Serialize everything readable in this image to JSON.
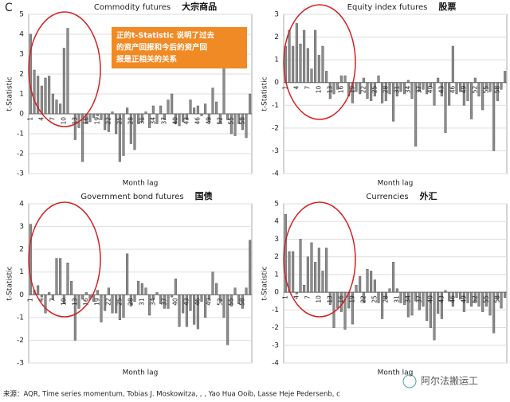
{
  "panel_label": "C",
  "annotation": [
    "正的t-Statistic 说明了过去",
    "的资产回报和今后的资产回",
    "报是正相关的关系"
  ],
  "source": "来源：AQR, Time series momentum, Tobias J. Moskowitza, , , Yao Hua Ooib, Lasse Heje Pedersenb, c",
  "watermark": "阿尔法搬运工",
  "chart_data": [
    {
      "type": "bar",
      "title": "Commodity futures",
      "title_cn": "大宗商品",
      "xlabel": "Month lag",
      "ylabel": "t-Statistic",
      "color": "#8c8c8c",
      "grid": true,
      "x": [
        1,
        2,
        3,
        4,
        5,
        6,
        7,
        8,
        9,
        10,
        11,
        12,
        13,
        14,
        15,
        16,
        17,
        18,
        19,
        20,
        21,
        22,
        23,
        24,
        25,
        26,
        27,
        28,
        29,
        30,
        31,
        32,
        33,
        34,
        35,
        36,
        37,
        38,
        39,
        40,
        41,
        42,
        43,
        44,
        45,
        46,
        47,
        48,
        49,
        50,
        51,
        52,
        53,
        54,
        55,
        56,
        57,
        58,
        59,
        60
      ],
      "values": [
        4.0,
        2.2,
        1.9,
        1.4,
        1.8,
        1.9,
        1.0,
        0.7,
        0.5,
        3.3,
        4.3,
        0.0,
        -1.3,
        -0.7,
        -2.4,
        -0.5,
        -0.4,
        -0.2,
        -0.1,
        -0.3,
        -0.8,
        -0.9,
        0.1,
        -1.0,
        -2.4,
        -2.1,
        0.3,
        -1.5,
        -1.8,
        -0.5,
        -0.4,
        0.1,
        -0.7,
        0.4,
        -0.5,
        0.4,
        -0.3,
        0.7,
        1.0,
        -0.5,
        -0.6,
        -0.4,
        -0.3,
        0.7,
        0.3,
        0.4,
        -0.1,
        0.5,
        -0.4,
        1.3,
        0.6,
        -0.5,
        2.3,
        -0.3,
        -1.0,
        -1.1,
        -0.5,
        -0.8,
        -1.2,
        1.0
      ],
      "xticks": [
        1,
        4,
        7,
        10,
        13,
        16,
        19,
        22,
        25,
        28,
        31,
        34,
        37,
        40,
        43,
        46,
        49,
        52,
        55,
        58
      ],
      "ylim": [
        -3,
        5
      ],
      "yticks": [
        -3,
        -2,
        -1,
        0,
        1,
        2,
        3,
        4,
        5
      ]
    },
    {
      "type": "bar",
      "title": "Equity index futures",
      "title_cn": "股票",
      "xlabel": "Month lag",
      "ylabel": "t-Statistic",
      "color": "#8c8c8c",
      "grid": true,
      "x": [
        1,
        2,
        3,
        4,
        5,
        6,
        7,
        8,
        9,
        10,
        11,
        12,
        13,
        14,
        15,
        16,
        17,
        18,
        19,
        20,
        21,
        22,
        23,
        24,
        25,
        26,
        27,
        28,
        29,
        30,
        31,
        32,
        33,
        34,
        35,
        36,
        37,
        38,
        39,
        40,
        41,
        42,
        43,
        44,
        45,
        46,
        47,
        48,
        49,
        50,
        51,
        52,
        53,
        54,
        55,
        56,
        57,
        58,
        59,
        60
      ],
      "values": [
        1.6,
        2.3,
        1.6,
        2.6,
        1.7,
        2.3,
        1.5,
        0.6,
        2.3,
        1.2,
        1.6,
        0.5,
        -0.7,
        -0.5,
        -0.3,
        0.3,
        0.3,
        -0.6,
        -0.9,
        -0.4,
        -0.5,
        0.2,
        -0.7,
        -0.8,
        -0.6,
        0.3,
        -0.9,
        -0.8,
        -0.5,
        -1.7,
        -0.6,
        -0.4,
        -0.5,
        0.1,
        -0.7,
        -2.8,
        -0.4,
        -0.3,
        -0.5,
        -0.2,
        -1.0,
        0.2,
        -0.6,
        -2.2,
        -1.0,
        1.6,
        -0.5,
        -0.4,
        -1.0,
        -0.8,
        -1.6,
        0.2,
        -0.6,
        -1.2,
        -0.3,
        -0.4,
        -3.0,
        -0.8,
        -0.3,
        0.5
      ],
      "xticks": [
        1,
        4,
        7,
        10,
        13,
        16,
        19,
        22,
        25,
        28,
        31,
        34,
        37,
        40,
        43,
        46,
        49,
        52,
        55,
        58
      ],
      "ylim": [
        -4,
        3
      ],
      "yticks": [
        -4,
        -3,
        -2,
        -1,
        0,
        1,
        2,
        3
      ]
    },
    {
      "type": "bar",
      "title": "Government bond futures",
      "title_cn": "国债",
      "xlabel": "Month lag",
      "ylabel": "t-Statistic",
      "color": "#8c8c8c",
      "grid": true,
      "x": [
        1,
        2,
        3,
        4,
        5,
        6,
        7,
        8,
        9,
        10,
        11,
        12,
        13,
        14,
        15,
        16,
        17,
        18,
        19,
        20,
        21,
        22,
        23,
        24,
        25,
        26,
        27,
        28,
        29,
        30,
        31,
        32,
        33,
        34,
        35,
        36,
        37,
        38,
        39,
        40,
        41,
        42,
        43,
        44,
        45,
        46,
        47,
        48,
        49,
        50,
        51,
        52,
        53,
        54,
        55,
        56,
        57,
        58,
        59,
        60
      ],
      "values": [
        3.1,
        0.2,
        0.4,
        -0.1,
        -0.8,
        0.1,
        -0.2,
        1.6,
        1.6,
        -0.4,
        1.4,
        0.6,
        -2.0,
        -0.6,
        -0.2,
        0.1,
        -0.2,
        -0.3,
        0.2,
        -1.2,
        -0.7,
        0.3,
        -0.8,
        -0.8,
        -1.1,
        -1.0,
        1.8,
        -0.5,
        -0.3,
        0.6,
        0.5,
        0.3,
        -0.9,
        -0.2,
        0.1,
        -0.4,
        -0.6,
        -0.6,
        -0.1,
        0.7,
        -1.4,
        -0.8,
        -1.4,
        -0.7,
        -1.3,
        -1.5,
        -0.3,
        -1.0,
        -0.2,
        1.0,
        0.5,
        -0.3,
        -1.0,
        -2.2,
        -0.5,
        0.3,
        -0.4,
        -0.6,
        0.3,
        2.4
      ],
      "xticks": [
        1,
        4,
        7,
        10,
        13,
        16,
        19,
        22,
        25,
        28,
        31,
        34,
        37,
        40,
        43,
        46,
        49,
        52,
        55,
        58
      ],
      "ylim": [
        -3,
        4
      ],
      "yticks": [
        -3,
        -2,
        -1,
        0,
        1,
        2,
        3,
        4
      ]
    },
    {
      "type": "bar",
      "title": "Currencies",
      "title_cn": "外汇",
      "xlabel": "Month lag",
      "ylabel": "t-Statistic",
      "color": "#8c8c8c",
      "grid": true,
      "x": [
        1,
        2,
        3,
        4,
        5,
        6,
        7,
        8,
        9,
        10,
        11,
        12,
        13,
        14,
        15,
        16,
        17,
        18,
        19,
        20,
        21,
        22,
        23,
        24,
        25,
        26,
        27,
        28,
        29,
        30,
        31,
        32,
        33,
        34,
        35,
        36,
        37,
        38,
        39,
        40,
        41,
        42,
        43,
        44,
        45,
        46,
        47,
        48,
        49,
        50,
        51,
        52,
        53,
        54,
        55,
        56,
        57,
        58,
        59,
        60
      ],
      "values": [
        4.4,
        2.3,
        2.3,
        -0.1,
        3.0,
        0.4,
        2.0,
        2.8,
        1.7,
        2.5,
        1.2,
        2.5,
        -0.7,
        -2.0,
        -0.9,
        -1.1,
        -2.1,
        -0.9,
        -1.8,
        0.4,
        0.9,
        -0.6,
        1.3,
        1.2,
        0.7,
        -0.6,
        -1.5,
        -0.4,
        0.2,
        1.7,
        0.2,
        -0.6,
        -0.7,
        -1.4,
        -1.3,
        -0.5,
        -1.0,
        -0.8,
        -1.6,
        -2.0,
        -2.7,
        -1.2,
        -1.5,
        0.1,
        -0.5,
        -0.8,
        -0.3,
        -0.4,
        -1.1,
        -0.6,
        -0.8,
        -0.6,
        -0.8,
        -1.1,
        -0.8,
        -1.3,
        -2.3,
        -0.4,
        -0.9,
        -0.3
      ],
      "xticks": [
        1,
        4,
        7,
        10,
        13,
        16,
        19,
        22,
        25,
        28,
        31,
        34,
        37,
        40,
        43,
        46,
        49,
        52,
        55,
        58
      ],
      "ylim": [
        -4,
        5
      ],
      "yticks": [
        -4,
        -3,
        -2,
        -1,
        0,
        1,
        2,
        3,
        4,
        5
      ]
    }
  ]
}
